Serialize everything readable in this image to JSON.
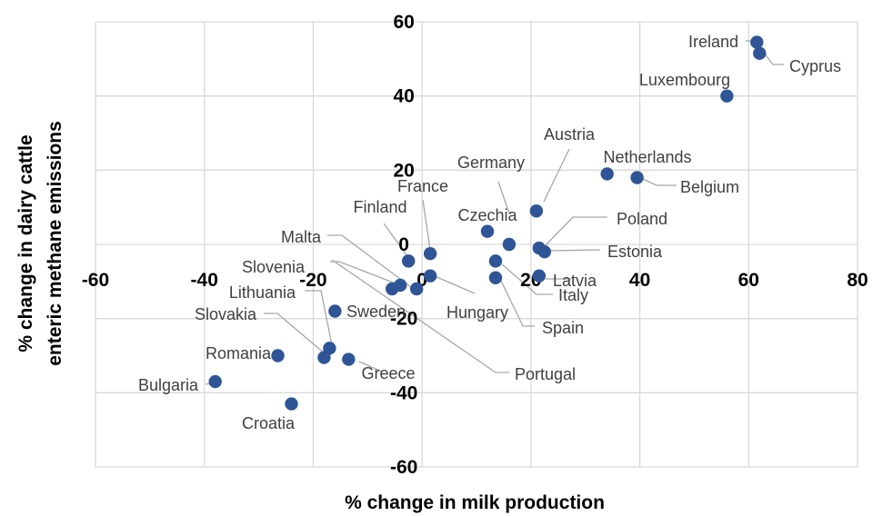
{
  "chart_data": {
    "type": "scatter",
    "xlabel": "% change in milk production",
    "ylabel": "% change in dairy cattle enteric methane emissions",
    "xlim": [
      -60,
      80
    ],
    "ylim": [
      -60,
      60
    ],
    "xticks": [
      -60,
      -40,
      -20,
      0,
      20,
      40,
      60,
      80
    ],
    "yticks": [
      -60,
      -40,
      -20,
      0,
      20,
      40,
      60
    ],
    "grid": true,
    "marker_color": "#2f5597",
    "points": [
      {
        "label": "Ireland",
        "x": 61.5,
        "y": 54.5
      },
      {
        "label": "Cyprus",
        "x": 62,
        "y": 51.5
      },
      {
        "label": "Luxembourg",
        "x": 56,
        "y": 40
      },
      {
        "label": "Netherlands",
        "x": 34,
        "y": 19
      },
      {
        "label": "Belgium",
        "x": 39.5,
        "y": 18
      },
      {
        "label": "Austria",
        "x": 21,
        "y": 9
      },
      {
        "label": "Poland",
        "x": 21.5,
        "y": -1
      },
      {
        "label": "Estonia",
        "x": 22.5,
        "y": -2
      },
      {
        "label": "Latvia",
        "x": 21.5,
        "y": -8.5
      },
      {
        "label": "Germany",
        "x": 16,
        "y": 0
      },
      {
        "label": "Czechia",
        "x": 12,
        "y": 3.5
      },
      {
        "label": "Italy",
        "x": 13.5,
        "y": -4.5
      },
      {
        "label": "Spain",
        "x": 13.5,
        "y": -9
      },
      {
        "label": "France",
        "x": 1.5,
        "y": -2.5
      },
      {
        "label": "Hungary",
        "x": 1.5,
        "y": -8.5
      },
      {
        "label": "Finland",
        "x": -2.5,
        "y": -4.5
      },
      {
        "label": "Malta",
        "x": -1,
        "y": -12
      },
      {
        "label": "Slovenia",
        "x": -4,
        "y": -11
      },
      {
        "label": "Portugal",
        "x": -5.5,
        "y": -12
      },
      {
        "label": "Sweden",
        "x": -16,
        "y": -18
      },
      {
        "label": "Lithuania",
        "x": -17,
        "y": -28
      },
      {
        "label": "Slovakia",
        "x": -18,
        "y": -30.5
      },
      {
        "label": "Greece",
        "x": -13.5,
        "y": -31
      },
      {
        "label": "Romania",
        "x": -26.5,
        "y": -30
      },
      {
        "label": "Bulgaria",
        "x": -38,
        "y": -37
      },
      {
        "label": "Croatia",
        "x": -24,
        "y": -43
      }
    ]
  }
}
